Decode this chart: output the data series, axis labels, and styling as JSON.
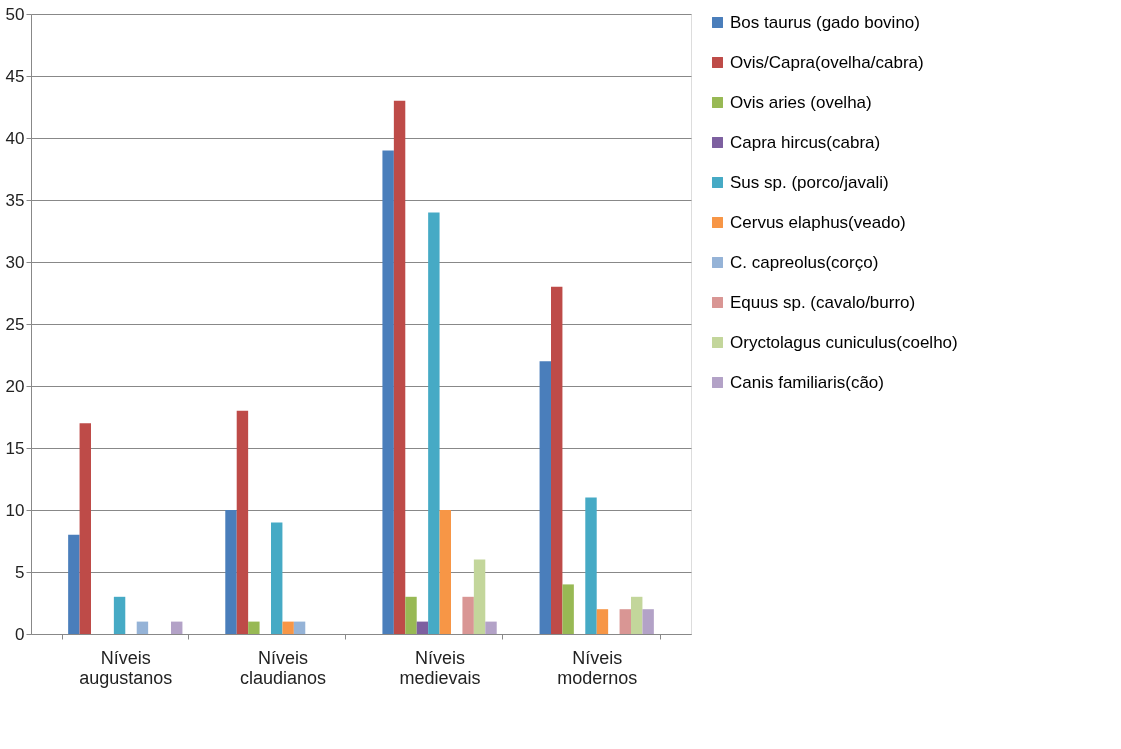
{
  "chart_data": {
    "type": "bar",
    "categories": [
      "Níveis augustanos",
      "Níveis claudianos",
      "Níveis medievais",
      "Níveis modernos"
    ],
    "series": [
      {
        "name": "Bos taurus (gado bovino)",
        "color": "#4a7ebb",
        "values": [
          8,
          10,
          39,
          22
        ]
      },
      {
        "name": "Ovis/Capra(ovelha/cabra)",
        "color": "#be4b48",
        "values": [
          17,
          18,
          43,
          28
        ]
      },
      {
        "name": "Ovis aries (ovelha)",
        "color": "#98b954",
        "values": [
          0,
          1,
          3,
          4
        ]
      },
      {
        "name": "Capra hircus(cabra)",
        "color": "#7d60a0",
        "values": [
          0,
          0,
          1,
          0
        ]
      },
      {
        "name": "Sus sp. (porco/javali)",
        "color": "#46aac5",
        "values": [
          3,
          9,
          34,
          11
        ]
      },
      {
        "name": "Cervus elaphus(veado)",
        "color": "#f79646",
        "values": [
          0,
          1,
          10,
          2
        ]
      },
      {
        "name": "C. capreolus(corço)",
        "color": "#95b3d7",
        "values": [
          1,
          1,
          0,
          0
        ]
      },
      {
        "name": "Equus sp. (cavalo/burro)",
        "color": "#d99694",
        "values": [
          0,
          0,
          3,
          2
        ]
      },
      {
        "name": "Oryctolagus cuniculus(coelho)",
        "color": "#c3d69b",
        "values": [
          0,
          0,
          6,
          3
        ]
      },
      {
        "name": "Canis familiaris(cão)",
        "color": "#b3a2c7",
        "values": [
          1,
          0,
          1,
          2
        ]
      }
    ],
    "ylim": [
      0,
      50
    ],
    "yticks": [
      0,
      5,
      10,
      15,
      20,
      25,
      30,
      35,
      40,
      45,
      50
    ],
    "grid": "y",
    "legend": "right"
  }
}
